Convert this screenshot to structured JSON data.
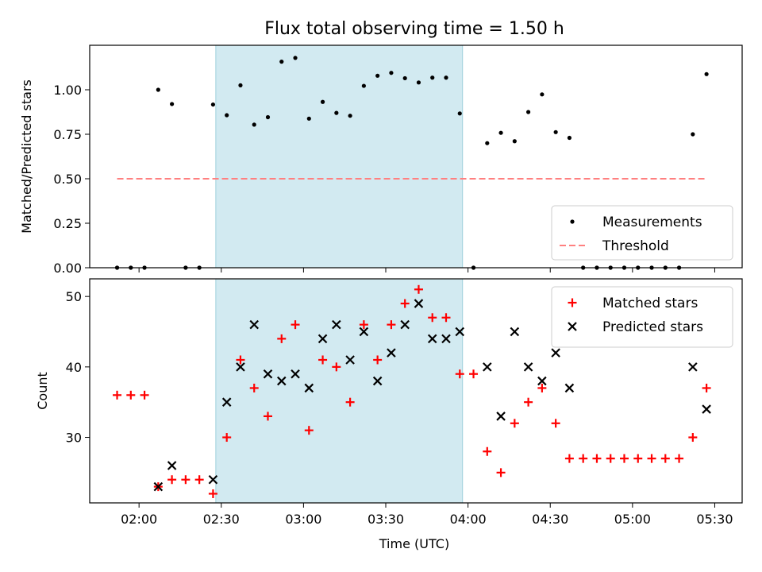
{
  "chart_data": {
    "title": "Flux total observing time = 1.50 h",
    "xlabel": "Time (UTC)",
    "x_unit": "time of day (HH:MM UTC)",
    "xlim": [
      "01:42",
      "05:40"
    ],
    "x_ticks": [
      "02:00",
      "02:30",
      "03:00",
      "03:30",
      "04:00",
      "04:30",
      "05:00",
      "05:30"
    ],
    "shaded_interval": {
      "start": "02:28",
      "end": "03:58",
      "color": "#add8e6"
    },
    "panels": [
      {
        "type": "scatter",
        "ylabel": "Matched/Predicted stars",
        "ylim": [
          0,
          1.25
        ],
        "y_ticks": [
          "0.00",
          "0.25",
          "0.50",
          "0.75",
          "1.00"
        ],
        "legend_position": "lower-right",
        "series": [
          {
            "name": "Measurements",
            "marker": "dot",
            "color": "#000000",
            "points": [
              [
                "01:52",
                0.0
              ],
              [
                "01:57",
                0.0
              ],
              [
                "02:02",
                0.0
              ],
              [
                "02:07",
                1.0
              ],
              [
                "02:12",
                0.92
              ],
              [
                "02:17",
                0.0
              ],
              [
                "02:22",
                0.0
              ],
              [
                "02:27",
                0.917
              ],
              [
                "02:32",
                0.857
              ],
              [
                "02:37",
                1.025
              ],
              [
                "02:42",
                0.804
              ],
              [
                "02:47",
                0.846
              ],
              [
                "02:52",
                1.158
              ],
              [
                "02:57",
                1.179
              ],
              [
                "03:02",
                0.838
              ],
              [
                "03:07",
                0.932
              ],
              [
                "03:12",
                0.87
              ],
              [
                "03:17",
                0.854
              ],
              [
                "03:22",
                1.022
              ],
              [
                "03:27",
                1.079
              ],
              [
                "03:32",
                1.095
              ],
              [
                "03:37",
                1.065
              ],
              [
                "03:42",
                1.041
              ],
              [
                "03:47",
                1.068
              ],
              [
                "03:52",
                1.068
              ],
              [
                "03:57",
                0.867
              ],
              [
                "04:02",
                0.0
              ],
              [
                "04:07",
                0.7
              ],
              [
                "04:12",
                0.758
              ],
              [
                "04:17",
                0.711
              ],
              [
                "04:22",
                0.875
              ],
              [
                "04:27",
                0.974
              ],
              [
                "04:32",
                0.762
              ],
              [
                "04:37",
                0.73
              ],
              [
                "04:42",
                0.0
              ],
              [
                "04:47",
                0.0
              ],
              [
                "04:52",
                0.0
              ],
              [
                "04:57",
                0.0
              ],
              [
                "05:02",
                0.0
              ],
              [
                "05:07",
                0.0
              ],
              [
                "05:12",
                0.0
              ],
              [
                "05:17",
                0.0
              ],
              [
                "05:22",
                0.75
              ],
              [
                "05:27",
                1.088
              ]
            ]
          },
          {
            "name": "Threshold",
            "line_style": "dashed",
            "color": "#ff8080",
            "points": [
              [
                "01:52",
                0.5
              ],
              [
                "05:27",
                0.5
              ]
            ]
          }
        ]
      },
      {
        "type": "scatter",
        "ylabel": "Count",
        "ylim": [
          20.7,
          52.5
        ],
        "y_ticks": [
          "30",
          "40",
          "50"
        ],
        "legend_position": "top-right",
        "series": [
          {
            "name": "Matched stars",
            "marker": "plus",
            "color": "#ff0000",
            "points": [
              [
                "01:52",
                36
              ],
              [
                "01:57",
                36
              ],
              [
                "02:02",
                36
              ],
              [
                "02:07",
                23
              ],
              [
                "02:12",
                24
              ],
              [
                "02:17",
                24
              ],
              [
                "02:22",
                24
              ],
              [
                "02:27",
                22
              ],
              [
                "02:32",
                30
              ],
              [
                "02:37",
                41
              ],
              [
                "02:42",
                37
              ],
              [
                "02:47",
                33
              ],
              [
                "02:52",
                44
              ],
              [
                "02:57",
                46
              ],
              [
                "03:02",
                31
              ],
              [
                "03:07",
                41
              ],
              [
                "03:12",
                40
              ],
              [
                "03:17",
                35
              ],
              [
                "03:22",
                46
              ],
              [
                "03:27",
                41
              ],
              [
                "03:32",
                46
              ],
              [
                "03:37",
                49
              ],
              [
                "03:42",
                51
              ],
              [
                "03:47",
                47
              ],
              [
                "03:52",
                47
              ],
              [
                "03:57",
                39
              ],
              [
                "04:02",
                39
              ],
              [
                "04:07",
                28
              ],
              [
                "04:12",
                25
              ],
              [
                "04:17",
                32
              ],
              [
                "04:22",
                35
              ],
              [
                "04:27",
                37
              ],
              [
                "04:32",
                32
              ],
              [
                "04:37",
                27
              ],
              [
                "04:42",
                27
              ],
              [
                "04:47",
                27
              ],
              [
                "04:52",
                27
              ],
              [
                "04:57",
                27
              ],
              [
                "05:02",
                27
              ],
              [
                "05:07",
                27
              ],
              [
                "05:12",
                27
              ],
              [
                "05:17",
                27
              ],
              [
                "05:22",
                30
              ],
              [
                "05:27",
                37
              ]
            ]
          },
          {
            "name": "Predicted stars",
            "marker": "x",
            "color": "#000000",
            "points": [
              [
                "02:07",
                23
              ],
              [
                "02:12",
                26
              ],
              [
                "02:27",
                24
              ],
              [
                "02:32",
                35
              ],
              [
                "02:37",
                40
              ],
              [
                "02:42",
                46
              ],
              [
                "02:47",
                39
              ],
              [
                "02:52",
                38
              ],
              [
                "02:57",
                39
              ],
              [
                "03:02",
                37
              ],
              [
                "03:07",
                44
              ],
              [
                "03:12",
                46
              ],
              [
                "03:17",
                41
              ],
              [
                "03:22",
                45
              ],
              [
                "03:27",
                38
              ],
              [
                "03:32",
                42
              ],
              [
                "03:37",
                46
              ],
              [
                "03:42",
                49
              ],
              [
                "03:47",
                44
              ],
              [
                "03:52",
                44
              ],
              [
                "03:57",
                45
              ],
              [
                "04:07",
                40
              ],
              [
                "04:12",
                33
              ],
              [
                "04:17",
                45
              ],
              [
                "04:22",
                40
              ],
              [
                "04:27",
                38
              ],
              [
                "04:32",
                42
              ],
              [
                "04:37",
                37
              ],
              [
                "05:22",
                40
              ],
              [
                "05:27",
                34
              ]
            ]
          }
        ]
      }
    ]
  }
}
